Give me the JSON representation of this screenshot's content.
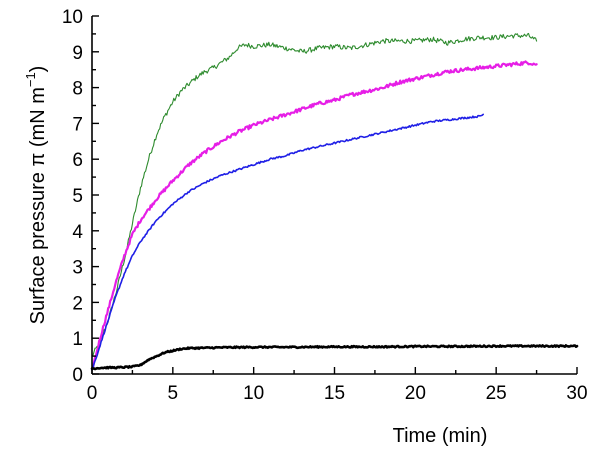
{
  "chart_data": {
    "type": "line",
    "title": "",
    "xlabel": "Time (min)",
    "ylabel": {
      "prefix": "Surface pressure ",
      "symbol": "π",
      "unit_open": " (mN m",
      "superscript": "−1",
      "unit_close": ")"
    },
    "xlim": [
      0,
      30
    ],
    "ylim": [
      0,
      10
    ],
    "x_ticks": [
      0,
      5,
      10,
      15,
      20,
      25,
      30
    ],
    "y_ticks": [
      0,
      1,
      2,
      3,
      4,
      5,
      6,
      7,
      8,
      9,
      10
    ],
    "grid": false,
    "legend": "none",
    "series": [
      {
        "name": "green",
        "color": "#2e8b2e",
        "noise": 0.07,
        "x": [
          0,
          0.5,
          1,
          1.5,
          2,
          2.5,
          3,
          3.5,
          4,
          4.5,
          5,
          5.5,
          6,
          6.5,
          7,
          7.5,
          8,
          8.5,
          9,
          9.5,
          10,
          11,
          12,
          13,
          14,
          15,
          16,
          17,
          18,
          19,
          20,
          21,
          22,
          23,
          24,
          25,
          26,
          27,
          27.5
        ],
        "y": [
          0.5,
          0.9,
          1.5,
          2.3,
          3.2,
          4.2,
          5.2,
          6.0,
          6.7,
          7.2,
          7.6,
          7.9,
          8.1,
          8.3,
          8.45,
          8.55,
          8.7,
          8.85,
          9.1,
          9.2,
          9.15,
          9.2,
          9.1,
          9.0,
          9.1,
          9.15,
          9.1,
          9.2,
          9.3,
          9.3,
          9.3,
          9.35,
          9.25,
          9.35,
          9.4,
          9.4,
          9.45,
          9.45,
          9.3
        ]
      },
      {
        "name": "magenta",
        "color": "#e61ee6",
        "noise": 0.05,
        "x": [
          0,
          0.5,
          1,
          1.5,
          2,
          2.5,
          3,
          4,
          5,
          6,
          7,
          8,
          9,
          10,
          11,
          12,
          13,
          14,
          15,
          16,
          17,
          18,
          19,
          20,
          21,
          22,
          23,
          24,
          25,
          26,
          27,
          27.5
        ],
        "y": [
          0.1,
          1.0,
          1.8,
          2.6,
          3.3,
          3.9,
          4.3,
          4.9,
          5.4,
          5.85,
          6.2,
          6.5,
          6.75,
          6.95,
          7.1,
          7.25,
          7.4,
          7.55,
          7.65,
          7.8,
          7.9,
          8.0,
          8.15,
          8.25,
          8.35,
          8.45,
          8.5,
          8.55,
          8.6,
          8.65,
          8.7,
          8.65
        ]
      },
      {
        "name": "blue",
        "color": "#1f1fe6",
        "noise": 0.025,
        "x": [
          0,
          0.5,
          1,
          1.5,
          2,
          2.5,
          3,
          4,
          5,
          6,
          7,
          8,
          9,
          10,
          11,
          12,
          13,
          14,
          15,
          16,
          17,
          18,
          19,
          20,
          21,
          22,
          23,
          24,
          24.2
        ],
        "y": [
          0.1,
          0.8,
          1.5,
          2.2,
          2.8,
          3.3,
          3.7,
          4.3,
          4.75,
          5.1,
          5.35,
          5.55,
          5.7,
          5.85,
          6.0,
          6.1,
          6.25,
          6.35,
          6.45,
          6.55,
          6.65,
          6.75,
          6.85,
          6.95,
          7.05,
          7.1,
          7.15,
          7.2,
          7.25
        ]
      },
      {
        "name": "black",
        "color": "#000000",
        "noise": 0.02,
        "x": [
          0,
          0.5,
          1,
          1.5,
          2,
          2.5,
          3,
          3.5,
          4,
          4.5,
          5,
          5.5,
          6,
          7,
          8,
          10,
          12,
          15,
          18,
          20,
          22,
          25,
          28,
          30
        ],
        "y": [
          0.15,
          0.17,
          0.18,
          0.18,
          0.19,
          0.2,
          0.25,
          0.4,
          0.5,
          0.6,
          0.65,
          0.7,
          0.72,
          0.73,
          0.74,
          0.75,
          0.75,
          0.76,
          0.76,
          0.77,
          0.77,
          0.78,
          0.78,
          0.78
        ]
      }
    ]
  }
}
